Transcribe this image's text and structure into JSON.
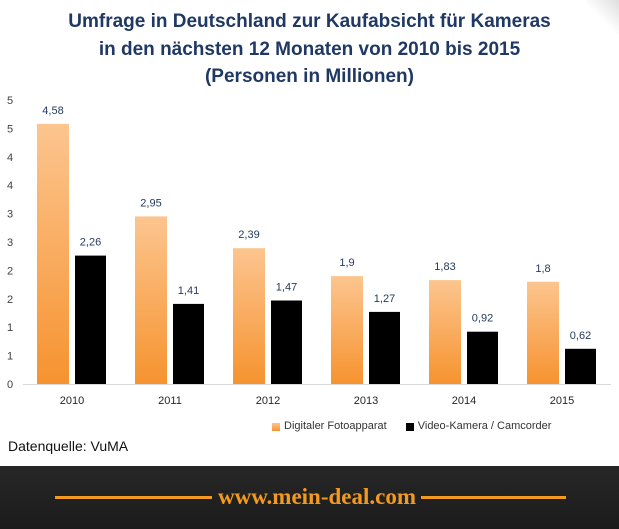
{
  "chart_data": {
    "type": "bar",
    "title": [
      "Umfrage in Deutschland zur Kaufabsicht für Kameras",
      "in den nächsten 12 Monaten von 2010 bis 2015",
      "(Personen in Millionen)"
    ],
    "xlabel": "",
    "ylabel": "",
    "categories": [
      "2010",
      "2011",
      "2012",
      "2013",
      "2014",
      "2015"
    ],
    "series": [
      {
        "name": "Digitaler Fotoapparat",
        "values": [
          4.58,
          2.95,
          2.39,
          1.9,
          1.83,
          1.8
        ],
        "labels": [
          "4,58",
          "2,95",
          "2,39",
          "1,9",
          "1,83",
          "1,8"
        ],
        "color": "#f6932f",
        "color_light": "#fcc58f"
      },
      {
        "name": "Video-Kamera / Camcorder",
        "values": [
          2.26,
          1.41,
          1.47,
          1.27,
          0.92,
          0.62
        ],
        "labels": [
          "2,26",
          "1,41",
          "1,47",
          "1,27",
          "0,92",
          "0,62"
        ],
        "color": "#000000"
      }
    ],
    "ylim": [
      0,
      5
    ],
    "yticks": [
      0,
      0.5,
      1,
      1.5,
      2,
      2.5,
      3,
      3.5,
      4,
      4.5,
      5
    ],
    "ytick_labels": [
      "0",
      "1",
      "1",
      "2",
      "2",
      "3",
      "3",
      "4",
      "4",
      "5",
      "5"
    ],
    "grid": false,
    "legend": "bottom"
  },
  "source": "Datenquelle: VuMA",
  "footer": {
    "site": "www.mein-deal.com"
  },
  "colors": {
    "title": "#1f3864",
    "footer_accent": "#f39a1e"
  }
}
